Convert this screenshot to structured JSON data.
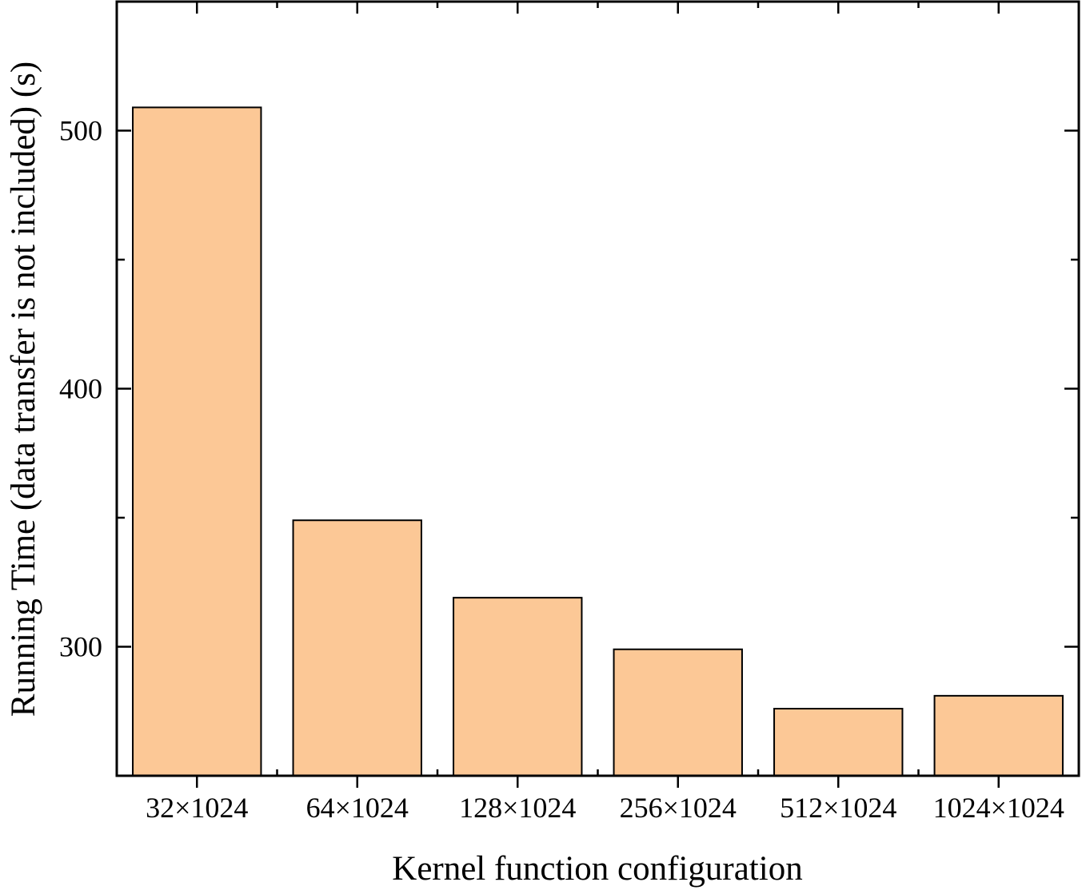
{
  "chart_data": {
    "type": "bar",
    "title": "",
    "xlabel": "Kernel function configuration",
    "ylabel": "Running Time (data transfer is not included) (s)",
    "categories": [
      "32×1024",
      "64×1024",
      "128×1024",
      "256×1024",
      "512×1024",
      "1024×1024"
    ],
    "values": [
      509,
      349,
      319,
      299,
      276,
      281
    ],
    "ylim": [
      250,
      550
    ],
    "yticks": [
      300,
      400,
      500
    ],
    "yticks_minor": [
      350,
      450
    ],
    "grid": false,
    "legend": "none",
    "colors": {
      "bar_fill": "#fcc896",
      "bar_stroke": "#000000",
      "axis": "#000000",
      "background": "#ffffff"
    }
  }
}
